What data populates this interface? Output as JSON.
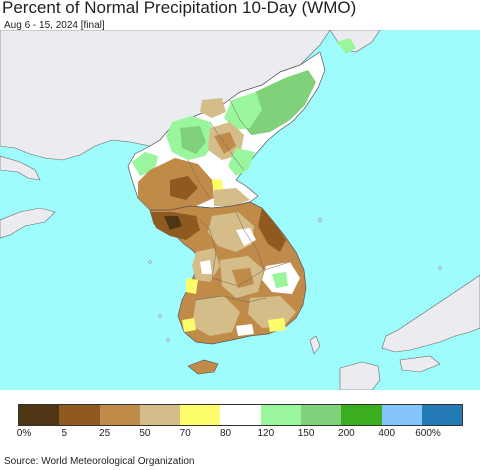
{
  "header": {
    "title": "Percent of Normal Precipitation 10-Day (WMO)",
    "subtitle": "Aug 6 - 15, 2024 [final]"
  },
  "map": {
    "colors": {
      "ocean": "#9ffcfd",
      "land_outside": "#ececf0",
      "border": "#555555"
    }
  },
  "legend": {
    "colors": [
      "#4e3614",
      "#8e5a20",
      "#c08a48",
      "#d4bd88",
      "#fdfd6b",
      "#ffffff",
      "#99f69c",
      "#80d17a",
      "#3aae1e",
      "#84c5fb",
      "#237ab4"
    ],
    "labels": [
      "0%",
      "5",
      "25",
      "50",
      "70",
      "80",
      "120",
      "150",
      "200",
      "400",
      "600%"
    ]
  },
  "footer": {
    "source": "Source: World Meteorological Organization"
  }
}
